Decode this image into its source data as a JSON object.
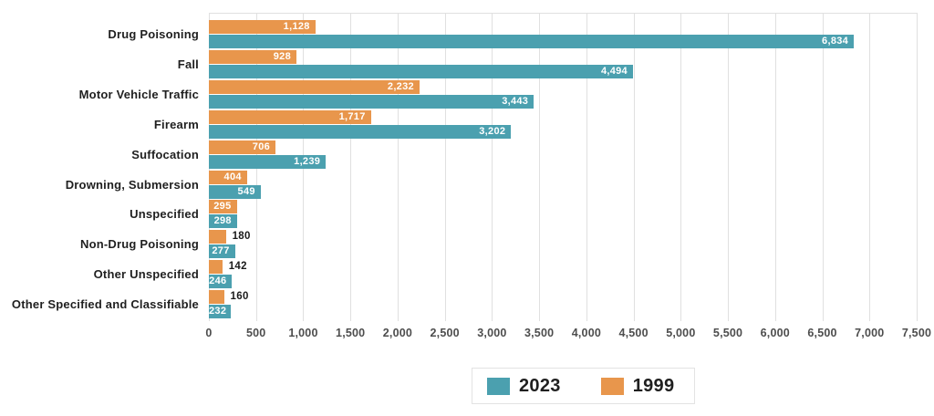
{
  "chart_data": {
    "type": "bar",
    "orientation": "horizontal",
    "title": "",
    "categories": [
      "Drug Poisoning",
      "Fall",
      "Motor Vehicle Traffic",
      "Firearm",
      "Suffocation",
      "Drowning, Submersion",
      "Unspecified",
      "Non-Drug Poisoning",
      "Other Unspecified",
      "Other Specified and Classifiable"
    ],
    "series": [
      {
        "name": "1999",
        "color": "#E8964C",
        "values": [
          1128,
          928,
          2232,
          1717,
          706,
          404,
          295,
          180,
          142,
          160
        ]
      },
      {
        "name": "2023",
        "color": "#4BA0AF",
        "values": [
          6834,
          4494,
          3443,
          3202,
          1239,
          549,
          298,
          277,
          246,
          232
        ]
      }
    ],
    "value_labels": {
      "format": "comma",
      "inside_color": "#FFFFFF",
      "outside_color": "#1A1A1A",
      "inside_min_value": 200
    },
    "xlim": [
      0,
      7500
    ],
    "x_tick_step": 500,
    "x_tick_labels": [
      "0",
      "500",
      "1,000",
      "1,500",
      "2,000",
      "2,500",
      "3,000",
      "3,500",
      "4,000",
      "4,500",
      "5,000",
      "5,500",
      "6,000",
      "6,500",
      "7,000",
      "7,500"
    ],
    "grid": "vertical",
    "gridline_color": "#E0E0E0",
    "legend": {
      "position": "bottom-center",
      "entries": [
        {
          "label": "2023",
          "color": "#4BA0AF"
        },
        {
          "label": "1999",
          "color": "#E8964C"
        }
      ]
    }
  }
}
